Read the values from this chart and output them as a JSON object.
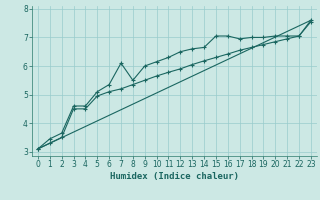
{
  "title": "",
  "xlabel": "Humidex (Indice chaleur)",
  "background_color": "#cce8e4",
  "grid_color": "#99cccc",
  "line_color": "#1a6660",
  "xlim": [
    -0.5,
    23.5
  ],
  "ylim": [
    2.85,
    8.1
  ],
  "xticks": [
    0,
    1,
    2,
    3,
    4,
    5,
    6,
    7,
    8,
    9,
    10,
    11,
    12,
    13,
    14,
    15,
    16,
    17,
    18,
    19,
    20,
    21,
    22,
    23
  ],
  "yticks": [
    3,
    4,
    5,
    6,
    7,
    8
  ],
  "series1_x": [
    0,
    1,
    2,
    3,
    4,
    5,
    6,
    7,
    8,
    9,
    10,
    11,
    12,
    13,
    14,
    15,
    16,
    17,
    18,
    19,
    20,
    21,
    22,
    23
  ],
  "series1_y": [
    3.1,
    3.45,
    3.65,
    4.6,
    4.6,
    5.1,
    5.35,
    6.1,
    5.5,
    6.0,
    6.15,
    6.3,
    6.5,
    6.6,
    6.65,
    7.05,
    7.05,
    6.95,
    7.0,
    7.0,
    7.05,
    7.05,
    7.05,
    7.6
  ],
  "series2_x": [
    0,
    1,
    2,
    3,
    4,
    5,
    6,
    7,
    8,
    9,
    10,
    11,
    12,
    13,
    14,
    15,
    16,
    17,
    18,
    19,
    20,
    21,
    22,
    23
  ],
  "series2_y": [
    3.1,
    3.3,
    3.5,
    4.5,
    4.5,
    4.95,
    5.1,
    5.2,
    5.35,
    5.5,
    5.65,
    5.78,
    5.9,
    6.05,
    6.18,
    6.3,
    6.42,
    6.55,
    6.65,
    6.75,
    6.85,
    6.95,
    7.05,
    7.55
  ],
  "series3_x": [
    0,
    23
  ],
  "series3_y": [
    3.1,
    7.6
  ],
  "marker": "+",
  "markersize": 3,
  "markeredgewidth": 0.8,
  "linewidth": 0.8,
  "tick_fontsize": 5.5,
  "xlabel_fontsize": 6.5
}
